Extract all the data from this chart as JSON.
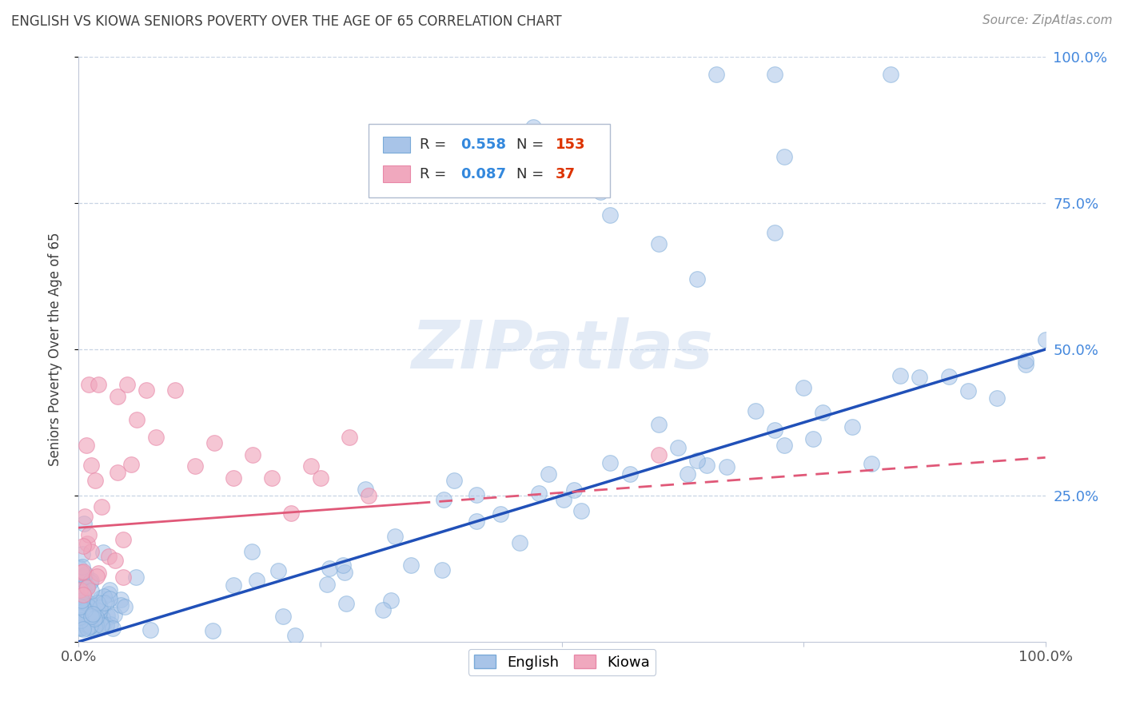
{
  "title": "ENGLISH VS KIOWA SENIORS POVERTY OVER THE AGE OF 65 CORRELATION CHART",
  "source": "Source: ZipAtlas.com",
  "ylabel": "Seniors Poverty Over the Age of 65",
  "xlim": [
    0,
    1
  ],
  "ylim": [
    0,
    1
  ],
  "xticks": [
    0,
    0.25,
    0.5,
    0.75,
    1.0
  ],
  "yticks": [
    0,
    0.25,
    0.5,
    0.75,
    1.0
  ],
  "english_R": 0.558,
  "english_N": 153,
  "kiowa_R": 0.087,
  "kiowa_N": 37,
  "english_color": "#a8c4e8",
  "kiowa_color": "#f0a8be",
  "english_edge_color": "#7aaad8",
  "kiowa_edge_color": "#e888a8",
  "english_line_color": "#2050b8",
  "kiowa_line_color": "#e05878",
  "right_axis_color": "#4488dd",
  "legend_R_color": "#3388dd",
  "legend_N_color": "#dd3300",
  "watermark_color": "#c8d8ee",
  "watermark": "ZIPatlas",
  "background_color": "#ffffff",
  "grid_color": "#c8d4e4",
  "title_color": "#404040",
  "source_color": "#909090",
  "eng_slope": 0.5,
  "eng_intercept": 0.0,
  "kiowa_slope": 0.12,
  "kiowa_intercept": 0.195
}
